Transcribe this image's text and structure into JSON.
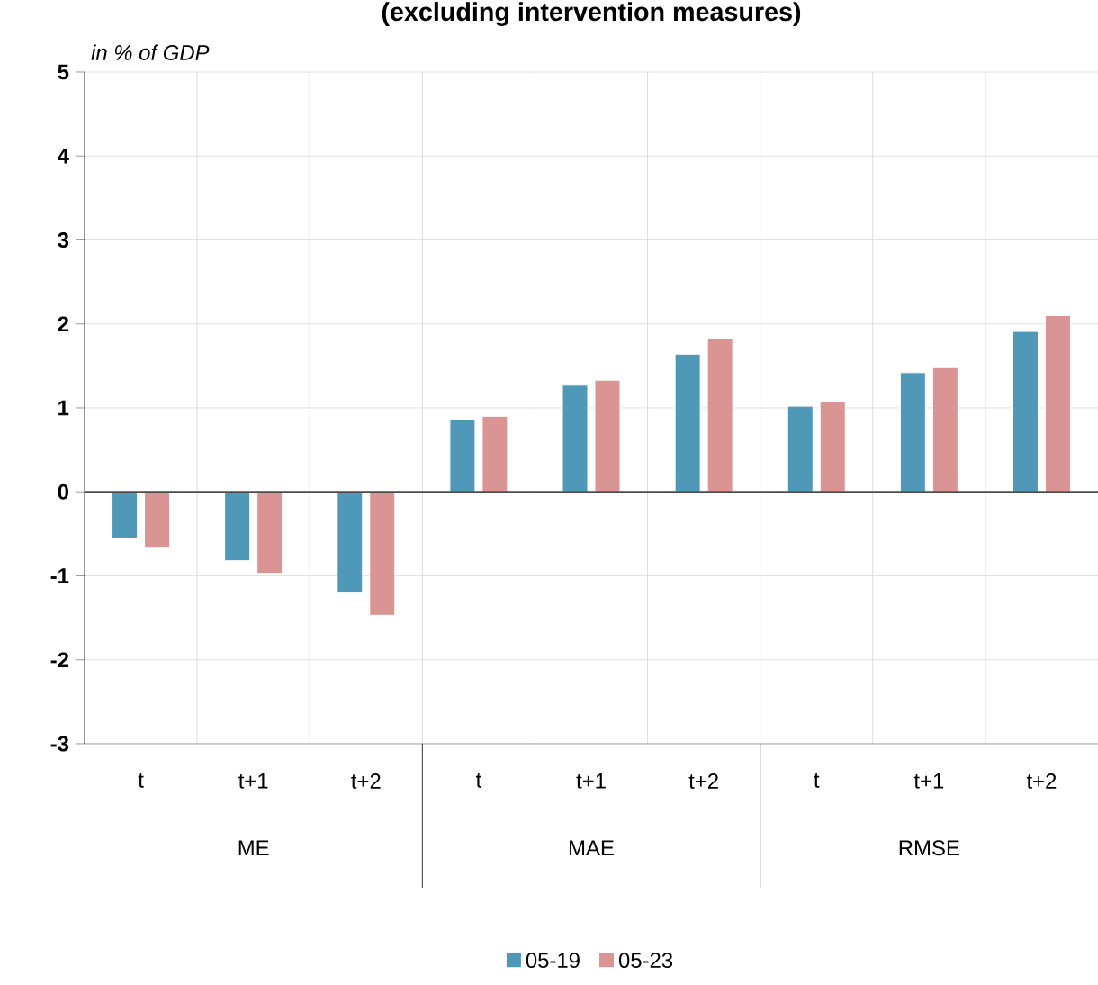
{
  "chart_data": {
    "type": "bar",
    "title": "(excluding intervention measures)",
    "ylabel": "in % of GDP",
    "categories": [
      "t",
      "t+1",
      "t+2",
      "t",
      "t+1",
      "t+2",
      "t",
      "t+1",
      "t+2"
    ],
    "annotations": [
      "ME",
      "MAE",
      "RMSE"
    ],
    "series": [
      {
        "name": "05-19",
        "color": "#4f98b8",
        "values": [
          -0.55,
          -0.82,
          -1.2,
          0.86,
          1.27,
          1.64,
          1.02,
          1.42,
          1.91
        ]
      },
      {
        "name": "05-23",
        "color": "#da9494",
        "values": [
          -0.67,
          -0.97,
          -1.47,
          0.9,
          1.33,
          1.83,
          1.07,
          1.48,
          2.1
        ]
      }
    ],
    "ylim": [
      -3,
      5
    ],
    "yticks": [
      -3,
      -2,
      -1,
      0,
      1,
      2,
      3,
      4,
      5
    ],
    "grid": true,
    "legend": "bottom"
  }
}
